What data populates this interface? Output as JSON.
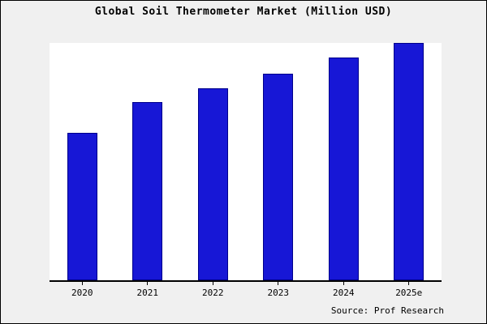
{
  "title": "Global Soil Thermometer Market (Million USD)",
  "source_label": "Source: Prof Research",
  "colors": {
    "bar_fill": "#1717D6",
    "bar_edge": "#00008B",
    "frame_background": "#F0F0F0",
    "plot_background": "#FFFFFF",
    "axis": "#000000",
    "text": "#000000"
  },
  "chart_data": {
    "type": "bar",
    "title": "Global Soil Thermometer Market (Million USD)",
    "categories": [
      "2020",
      "2021",
      "2022",
      "2023",
      "2024",
      "2025e"
    ],
    "values": [
      62,
      75,
      81,
      87,
      94,
      100
    ],
    "xlabel": "",
    "ylabel": "",
    "ylim": [
      0,
      100
    ],
    "grid": false,
    "legend_position": "none",
    "y_axis_labels_shown": false
  }
}
